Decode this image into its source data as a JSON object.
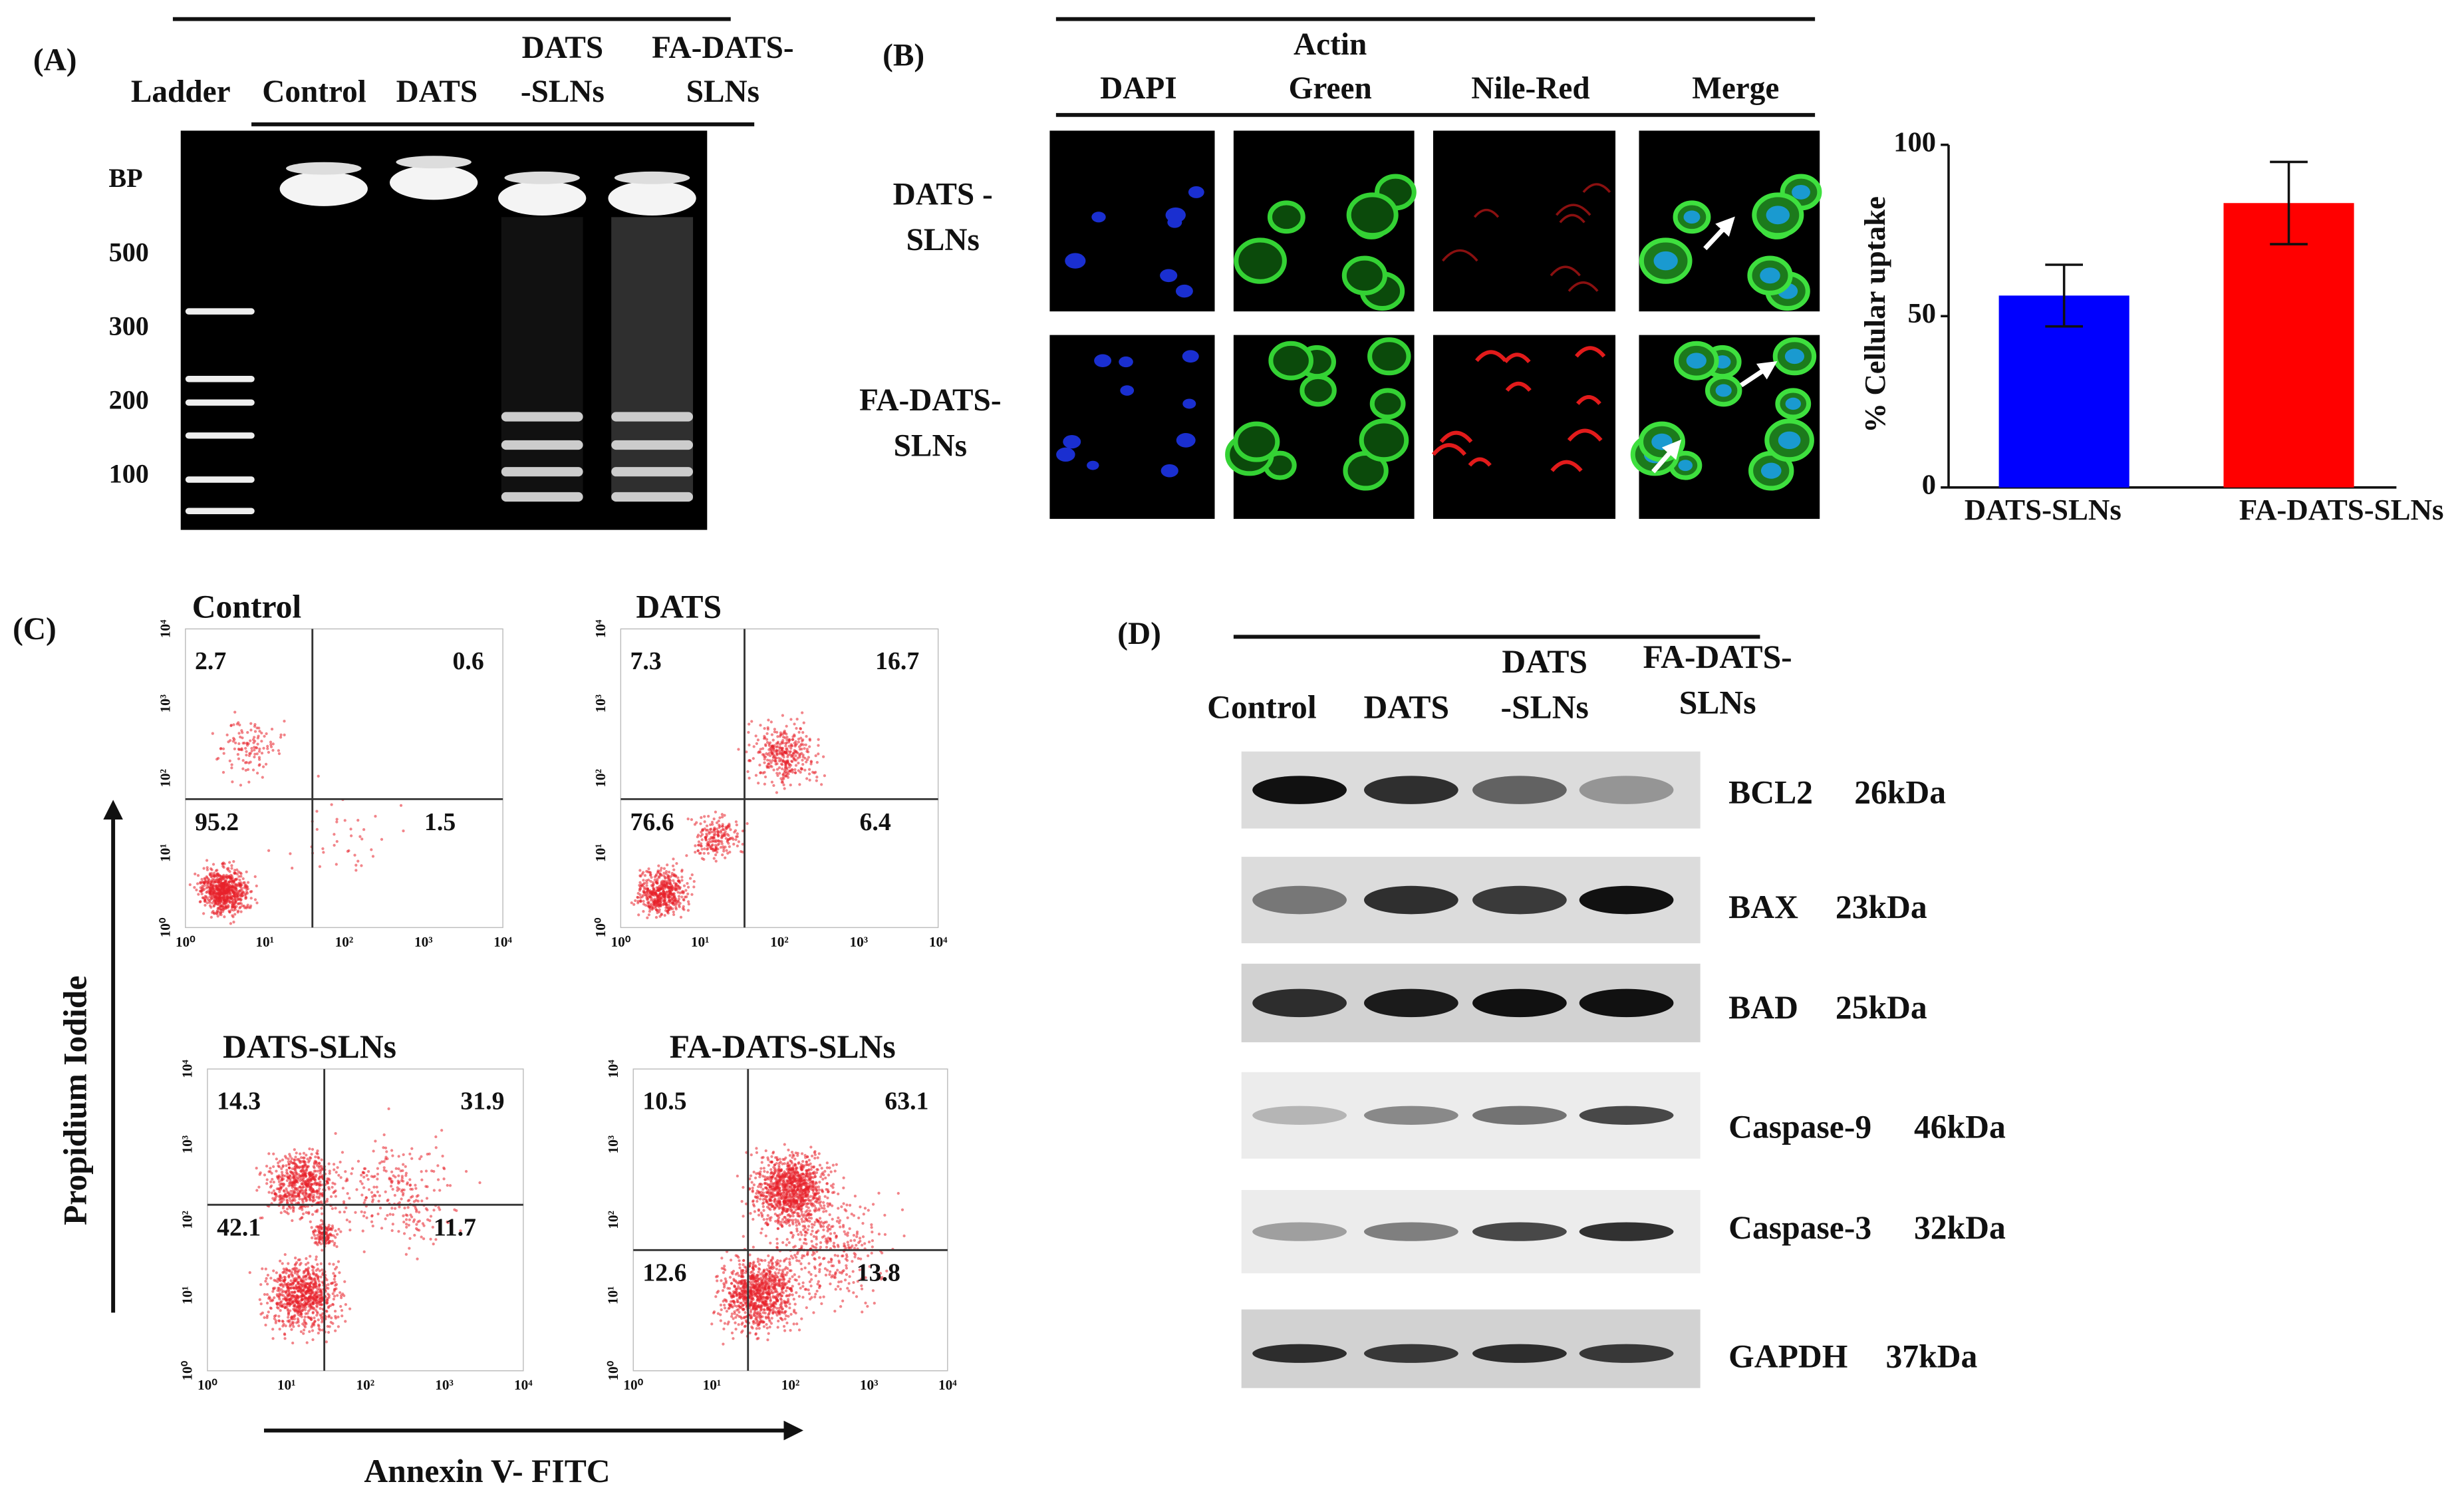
{
  "panel_a": {
    "label": "(A)",
    "lanes": [
      [
        "Ladder"
      ],
      [
        "Control"
      ],
      [
        "DATS"
      ],
      [
        "DATS",
        "-SLNs"
      ],
      [
        "FA-DATS-",
        "SLNs"
      ]
    ],
    "bp_title": "BP",
    "bp_ticks": [
      500,
      300,
      200,
      100
    ]
  },
  "panel_b": {
    "label": "(B)",
    "columns": [
      [
        "DAPI"
      ],
      [
        "Actin",
        "Green"
      ],
      [
        "Nile-Red"
      ],
      [
        "Merge"
      ]
    ],
    "rows": [
      [
        "DATS -",
        "SLNs"
      ],
      [
        "FA-DATS-",
        "SLNs"
      ]
    ]
  },
  "chart_data": {
    "type": "bar",
    "y_label": "% Cellular uptake",
    "categories": [
      "DATS-SLNs",
      "FA-DATS-SLNs"
    ],
    "values": [
      56,
      83
    ],
    "errors": [
      9,
      12
    ],
    "colors": [
      "#0000ff",
      "#ff0000"
    ],
    "ylim": [
      0,
      100
    ],
    "yticks": [
      0,
      50,
      100
    ]
  },
  "panel_c": {
    "label": "(C)",
    "y_axis_label": "Propidium Iodide",
    "x_axis_label": "Annexin V- FITC",
    "axis_ticks": [
      "10⁰",
      "10¹",
      "10²",
      "10³",
      "10⁴"
    ],
    "plots": [
      {
        "title": "Control",
        "quadrants": [
          2.7,
          0.6,
          95.2,
          1.5
        ]
      },
      {
        "title": "DATS",
        "quadrants": [
          7.3,
          16.7,
          76.6,
          6.4
        ]
      },
      {
        "title": "DATS-SLNs",
        "quadrants": [
          14.3,
          31.9,
          42.1,
          11.7
        ]
      },
      {
        "title": "FA-DATS-SLNs",
        "quadrants": [
          10.5,
          63.1,
          12.6,
          13.8
        ]
      }
    ]
  },
  "panel_d": {
    "label": "(D)",
    "lanes": [
      [
        "Control"
      ],
      [
        "DATS"
      ],
      [
        "DATS",
        "-SLNs"
      ],
      [
        "FA-DATS-",
        "SLNs"
      ]
    ],
    "proteins": [
      {
        "name": "BCL2",
        "size": "26kDa"
      },
      {
        "name": "BAX",
        "size": "23kDa"
      },
      {
        "name": "BAD",
        "size": "25kDa"
      },
      {
        "name": "Caspase-9",
        "size": "46kDa"
      },
      {
        "name": "Caspase-3",
        "size": "32kDa"
      },
      {
        "name": "GAPDH",
        "size": "37kDa"
      }
    ]
  }
}
